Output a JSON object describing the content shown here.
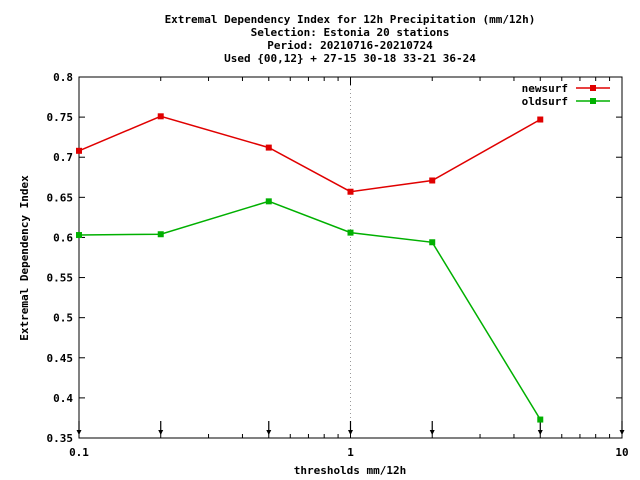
{
  "chart_data": {
    "type": "line",
    "title_lines": [
      "Extremal Dependency Index  for 12h Precipitation (mm/12h)",
      "Selection: Estonia     20 stations",
      "Period: 20210716-20210724",
      "Used {00,12} + 27-15 30-18 33-21 36-24"
    ],
    "xlabel": "thresholds mm/12h",
    "ylabel": "Extremal Dependency Index",
    "x_scale": "log",
    "xlim": [
      0.1,
      10
    ],
    "ylim": [
      0.35,
      0.8
    ],
    "x_ticks": [
      0.1,
      1,
      10
    ],
    "x_tick_labels": [
      "0.1",
      "1",
      "10"
    ],
    "y_ticks": [
      0.35,
      0.4,
      0.45,
      0.5,
      0.55,
      0.6,
      0.65,
      0.7,
      0.75,
      0.8
    ],
    "y_tick_labels": [
      "0.35",
      "0.4",
      "0.45",
      "0.5",
      "0.55",
      "0.6",
      "0.65",
      "0.7",
      "0.75",
      "0.8"
    ],
    "grid": true,
    "legend_position": "top-right",
    "threshold_markers_x": [
      0.1,
      0.2,
      0.5,
      1,
      2,
      5,
      10
    ],
    "series": [
      {
        "name": "newsurf",
        "color": "#e00000",
        "x": [
          0.1,
          0.2,
          0.5,
          1,
          2,
          5
        ],
        "y": [
          0.708,
          0.751,
          0.712,
          0.657,
          0.671,
          0.747
        ]
      },
      {
        "name": "oldsurf",
        "color": "#00b000",
        "x": [
          0.1,
          0.2,
          0.5,
          1,
          2,
          5
        ],
        "y": [
          0.603,
          0.604,
          0.645,
          0.606,
          0.594,
          0.373
        ]
      }
    ]
  }
}
